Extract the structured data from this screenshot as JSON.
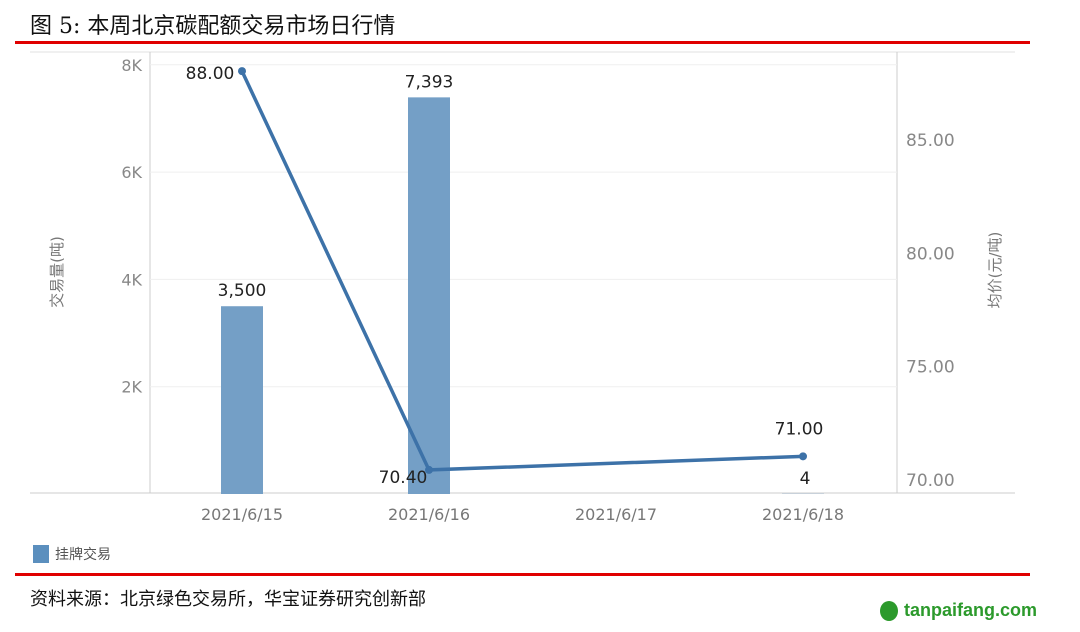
{
  "title": "图 5:  本周北京碳配额交易市场日行情",
  "source": "资料来源：北京绿色交易所，华宝证券研究创新部",
  "watermark": "tanpaifang.com",
  "chart_data": {
    "type": "bar+line",
    "categories": [
      "2021/6/15",
      "2021/6/16",
      "2021/6/17",
      "2021/6/18"
    ],
    "series": [
      {
        "name": "挂牌交易",
        "type": "bar",
        "axis": "left",
        "values": [
          3500,
          7393,
          null,
          4
        ],
        "labels": [
          "3,500",
          "7,393",
          "",
          "4"
        ],
        "color": "#5b8fbe"
      },
      {
        "type": "line",
        "axis": "right",
        "values": [
          88.0,
          70.4,
          null,
          71.0
        ],
        "labels": [
          "88.00",
          "70.40",
          "",
          "71.00"
        ],
        "color": "#3d72a8"
      }
    ],
    "y_left": {
      "label": "交易量(吨)",
      "ylim": [
        0,
        8000
      ],
      "ticks": [
        2000,
        4000,
        6000,
        8000
      ],
      "tick_labels": [
        "2K",
        "4K",
        "6K",
        "8K"
      ]
    },
    "y_right": {
      "label": "均价(元/吨)",
      "ylim": [
        68.6,
        89.4
      ],
      "ticks": [
        70,
        75,
        80,
        85
      ],
      "tick_labels": [
        "70.00",
        "75.00",
        "80.00",
        "85.00"
      ]
    },
    "grid": true,
    "legend": "bottom-left"
  }
}
